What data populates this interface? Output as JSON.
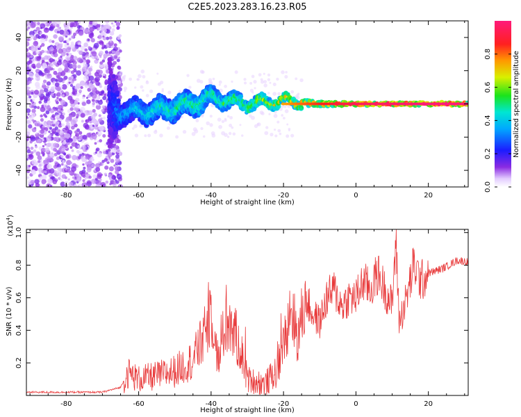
{
  "figure_title": "C2E5.2023.283.16.23.R05",
  "colors": {
    "snr_line": "#e8393a",
    "spectrogram_low": "#c9a6f0",
    "spectrogram_mid": "#00cfc8",
    "spectrogram_high": "#ff1a4e"
  },
  "chart_data": [
    {
      "type": "heatmap",
      "title": "",
      "xlabel": "Height of straight line (km)",
      "ylabel": "Frequency (Hz)",
      "xlim": [
        -91,
        31
      ],
      "ylim": [
        -50,
        50
      ],
      "x_ticks": [
        "-80",
        "-60",
        "-40",
        "-20",
        "0",
        "20"
      ],
      "y_ticks": [
        "-40",
        "-20",
        "0",
        "20",
        "40"
      ],
      "colorbar": {
        "label": "Normalized spectral amplitude",
        "range": [
          0,
          1
        ],
        "ticks": [
          "0.0",
          "0.2",
          "0.4",
          "0.6",
          "0.8"
        ],
        "colormap": "rainbow (white-violet-blue-cyan-green-yellow-red-pink)"
      },
      "description_signal": [
        {
          "x": -90,
          "spread_hz": 50,
          "amplitude": 0.1
        },
        {
          "x": -70,
          "spread_hz": 50,
          "amplitude": 0.1
        },
        {
          "x": -65,
          "center_hz": -5,
          "spread_hz": 8,
          "amplitude": 0.35
        },
        {
          "x": -55,
          "center_hz": -4,
          "spread_hz": 8,
          "amplitude": 0.45
        },
        {
          "x": -45,
          "center_hz": 0,
          "spread_hz": 8,
          "amplitude": 0.5
        },
        {
          "x": -40,
          "center_hz": 4,
          "spread_hz": 6,
          "amplitude": 0.5
        },
        {
          "x": -30,
          "center_hz": 0,
          "spread_hz": 4,
          "amplitude": 0.6
        },
        {
          "x": -20,
          "center_hz": 2,
          "spread_hz": 3,
          "amplitude": 0.7
        },
        {
          "x": -10,
          "center_hz": 0,
          "spread_hz": 2,
          "amplitude": 0.8
        },
        {
          "x": 0,
          "center_hz": 0,
          "spread_hz": 1,
          "amplitude": 0.9
        },
        {
          "x": 20,
          "center_hz": 0,
          "spread_hz": 1,
          "amplitude": 0.95
        },
        {
          "x": 31,
          "center_hz": 0,
          "spread_hz": 1,
          "amplitude": 0.95
        }
      ]
    },
    {
      "type": "line",
      "title": "",
      "xlabel": "Height of straight line (km)",
      "ylabel": "SNR (10 * v/v)",
      "y_multiplier_label": "(x10",
      "y_multiplier_exp": "4",
      "xlim": [
        -91,
        31
      ],
      "ylim": [
        0,
        1.02
      ],
      "x_ticks": [
        "-80",
        "-60",
        "-40",
        "-20",
        "0",
        "20"
      ],
      "y_ticks": [
        "0.2",
        "0.4",
        "0.6",
        "0.8",
        "1.0"
      ],
      "series": [
        {
          "x": [
            -91,
            -80,
            -70,
            -65,
            -63,
            -60,
            -55,
            -50,
            -45,
            -42,
            -40,
            -38,
            -36,
            -34,
            -32,
            -30,
            -25,
            -22,
            -20,
            -18,
            -16,
            -14,
            -12,
            -10,
            -8,
            -6,
            -4,
            -2,
            0,
            2,
            4,
            6,
            8,
            10,
            11,
            12,
            14,
            16,
            18,
            20,
            24,
            28,
            31
          ],
          "values": [
            0.02,
            0.02,
            0.02,
            0.05,
            0.14,
            0.1,
            0.12,
            0.15,
            0.22,
            0.35,
            0.55,
            0.2,
            0.45,
            0.4,
            0.3,
            0.1,
            0.07,
            0.15,
            0.3,
            0.55,
            0.35,
            0.6,
            0.5,
            0.45,
            0.6,
            0.65,
            0.55,
            0.6,
            0.6,
            0.7,
            0.65,
            0.75,
            0.65,
            0.55,
            0.95,
            0.45,
            0.6,
            0.8,
            0.7,
            0.75,
            0.78,
            0.83,
            0.82
          ]
        }
      ]
    }
  ]
}
